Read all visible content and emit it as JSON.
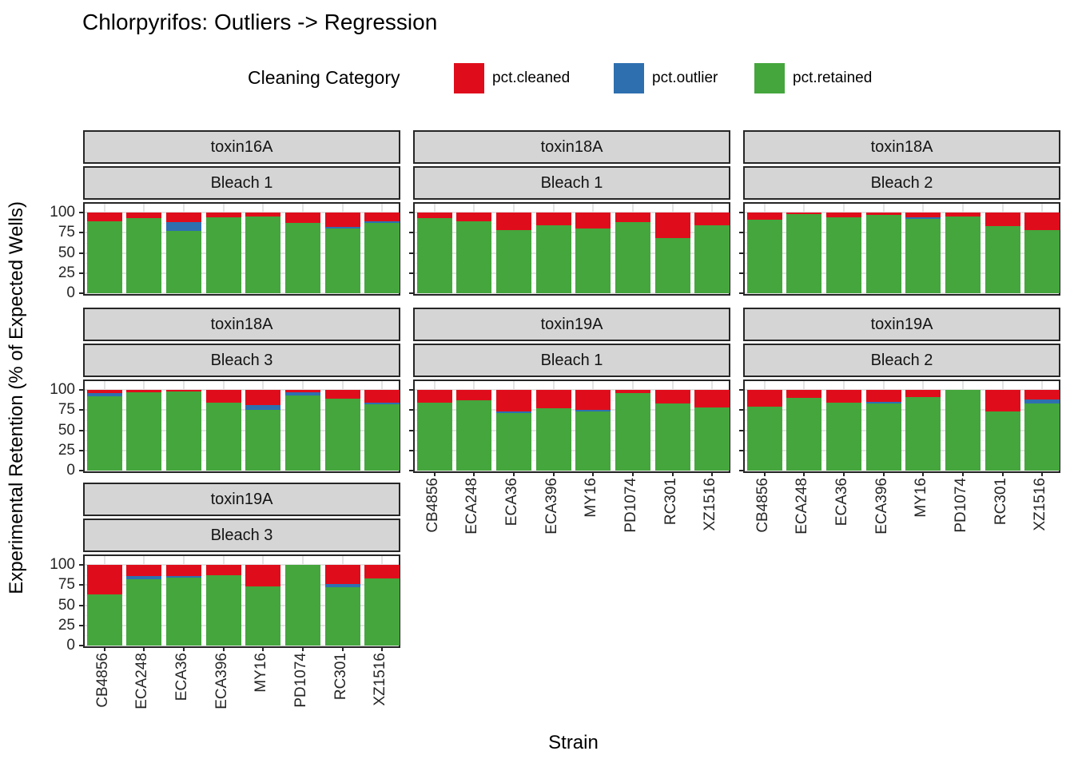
{
  "title": "Chlorpyrifos: Outliers -> Regression",
  "legend": {
    "title": "Cleaning Category",
    "items": [
      {
        "label": "pct.cleaned",
        "color": "#df0d1b"
      },
      {
        "label": "pct.outlier",
        "color": "#2e6fb0"
      },
      {
        "label": "pct.retained",
        "color": "#44a63d"
      }
    ]
  },
  "axes": {
    "y_title": "Experimental Retention (% of Expected Wells)",
    "x_title": "Strain",
    "y_tick_labels": [
      "100",
      "75",
      "50",
      "25",
      "0"
    ],
    "y_tick_values": [
      100,
      75,
      50,
      25,
      0
    ]
  },
  "chart_data": {
    "type": "bar",
    "stacked": true,
    "ylim": [
      0,
      100
    ],
    "grid": true,
    "legend_position": "top",
    "stack_order_bottom_to_top": [
      "pct.retained",
      "pct.outlier",
      "pct.cleaned"
    ],
    "categories": [
      "CB4856",
      "ECA248",
      "ECA36",
      "ECA396",
      "MY16",
      "PD1074",
      "RC301",
      "XZ1516"
    ],
    "facets": [
      {
        "toxin": "toxin16A",
        "bleach": "Bleach 1",
        "row": 0,
        "col": 0,
        "series": {
          "pct.retained": [
            89,
            93,
            77,
            94,
            95,
            87,
            80,
            87
          ],
          "pct.outlier": [
            0,
            0,
            11,
            0,
            0,
            0,
            2,
            2
          ],
          "pct.cleaned": [
            11,
            7,
            12,
            6,
            5,
            13,
            18,
            11
          ]
        }
      },
      {
        "toxin": "toxin18A",
        "bleach": "Bleach 1",
        "row": 0,
        "col": 1,
        "series": {
          "pct.retained": [
            93,
            89,
            78,
            84,
            80,
            88,
            68,
            84
          ],
          "pct.outlier": [
            0,
            0,
            0,
            0,
            0,
            0,
            0,
            0
          ],
          "pct.cleaned": [
            7,
            11,
            22,
            16,
            20,
            12,
            32,
            16
          ]
        }
      },
      {
        "toxin": "toxin18A",
        "bleach": "Bleach 2",
        "row": 0,
        "col": 2,
        "series": {
          "pct.retained": [
            91,
            98,
            94,
            97,
            92,
            95,
            83,
            78
          ],
          "pct.outlier": [
            0,
            0,
            0,
            0,
            2,
            0,
            0,
            0
          ],
          "pct.cleaned": [
            9,
            2,
            6,
            3,
            6,
            5,
            17,
            22
          ]
        }
      },
      {
        "toxin": "toxin18A",
        "bleach": "Bleach 3",
        "row": 1,
        "col": 0,
        "series": {
          "pct.retained": [
            92,
            97,
            98,
            84,
            75,
            93,
            89,
            82
          ],
          "pct.outlier": [
            4,
            0,
            0,
            0,
            6,
            4,
            0,
            2
          ],
          "pct.cleaned": [
            4,
            3,
            2,
            16,
            19,
            3,
            11,
            16
          ]
        }
      },
      {
        "toxin": "toxin19A",
        "bleach": "Bleach 1",
        "row": 1,
        "col": 1,
        "series": {
          "pct.retained": [
            84,
            87,
            71,
            77,
            73,
            96,
            83,
            78
          ],
          "pct.outlier": [
            0,
            0,
            2,
            0,
            2,
            0,
            0,
            0
          ],
          "pct.cleaned": [
            16,
            13,
            27,
            23,
            25,
            4,
            17,
            22
          ]
        }
      },
      {
        "toxin": "toxin19A",
        "bleach": "Bleach 2",
        "row": 1,
        "col": 2,
        "series": {
          "pct.retained": [
            79,
            90,
            84,
            83,
            91,
            100,
            73,
            83
          ],
          "pct.outlier": [
            0,
            0,
            0,
            2,
            0,
            0,
            0,
            5
          ],
          "pct.cleaned": [
            21,
            10,
            16,
            15,
            9,
            0,
            27,
            12
          ]
        }
      },
      {
        "toxin": "toxin19A",
        "bleach": "Bleach 3",
        "row": 2,
        "col": 0,
        "series": {
          "pct.retained": [
            63,
            82,
            84,
            87,
            73,
            100,
            72,
            83
          ],
          "pct.outlier": [
            0,
            4,
            2,
            0,
            0,
            0,
            4,
            0
          ],
          "pct.cleaned": [
            37,
            14,
            14,
            13,
            27,
            0,
            24,
            17
          ]
        }
      }
    ]
  },
  "colors": {
    "cleaned": "#df0d1b",
    "outlier": "#2e6fb0",
    "retained": "#44a63d",
    "strip_bg": "#d5d5d5",
    "panel_border": "#262626",
    "grid_major": "#e3e3e3",
    "grid_minor": "#f1f1f1"
  }
}
